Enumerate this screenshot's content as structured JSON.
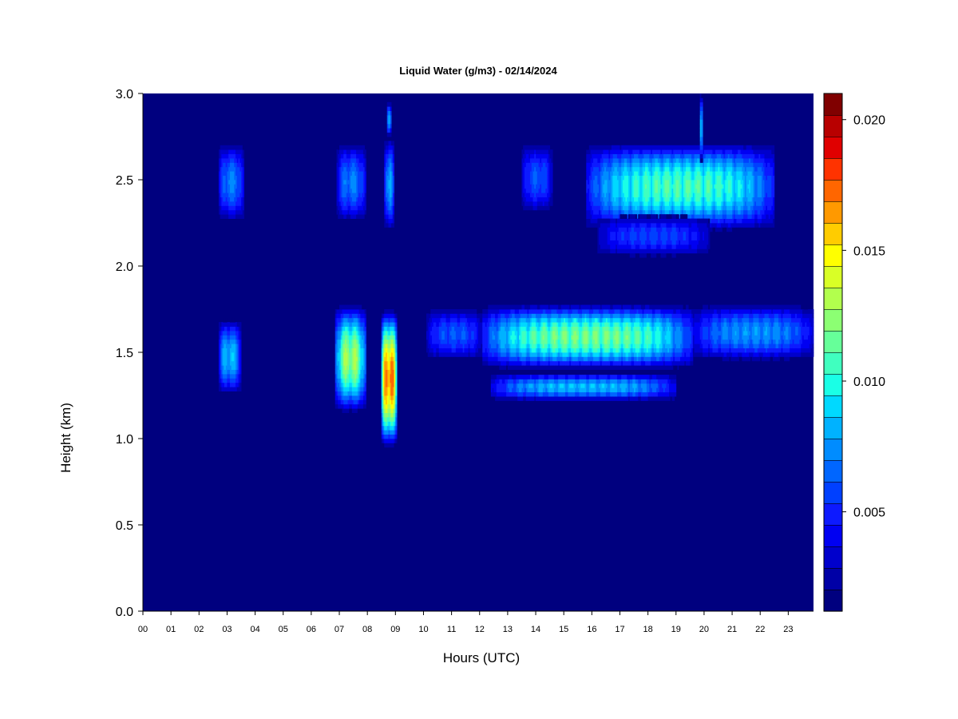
{
  "chart_data": {
    "type": "heatmap",
    "title": "Liquid Water (g/m3) - 02/14/2024",
    "xlabel": "Hours (UTC)",
    "ylabel": "Height (km)",
    "xlim": [
      0,
      23.9
    ],
    "ylim": [
      0.0,
      3.0
    ],
    "x_ticks": [
      "00",
      "01",
      "02",
      "03",
      "04",
      "05",
      "06",
      "07",
      "08",
      "09",
      "10",
      "11",
      "12",
      "13",
      "14",
      "15",
      "16",
      "17",
      "18",
      "19",
      "20",
      "21",
      "22",
      "23"
    ],
    "y_ticks": [
      "0.0",
      "0.5",
      "1.0",
      "1.5",
      "2.0",
      "2.5",
      "3.0"
    ],
    "background_value": 0.0,
    "colorbar": {
      "range": [
        0.0012,
        0.021
      ],
      "ticks": [
        "0.005",
        "0.010",
        "0.015",
        "0.020"
      ],
      "colors": [
        "#00007f",
        "#0000a6",
        "#0000cc",
        "#0000f2",
        "#0d1aff",
        "#0040ff",
        "#0066ff",
        "#008cff",
        "#00b2ff",
        "#00d9ff",
        "#1affe6",
        "#40ffbf",
        "#66ff99",
        "#8cff73",
        "#b2ff4d",
        "#d9ff26",
        "#ffff00",
        "#ffcc00",
        "#ff9900",
        "#ff6600",
        "#ff3300",
        "#e00000",
        "#b80000",
        "#800000"
      ]
    },
    "cloud_features": [
      {
        "hours": [
          2.7,
          3.6
        ],
        "height_km": [
          2.25,
          2.72
        ],
        "peak": 0.0075
      },
      {
        "hours": [
          6.9,
          7.95
        ],
        "height_km": [
          2.25,
          2.72
        ],
        "peak": 0.0075
      },
      {
        "hours": [
          8.6,
          8.95
        ],
        "height_km": [
          2.2,
          2.75
        ],
        "peak": 0.0085
      },
      {
        "hours": [
          13.5,
          14.6
        ],
        "height_km": [
          2.3,
          2.72
        ],
        "peak": 0.0065
      },
      {
        "hours": [
          15.8,
          22.5
        ],
        "height_km": [
          2.2,
          2.72
        ],
        "peak": 0.0115
      },
      {
        "hours": [
          16.2,
          20.2
        ],
        "height_km": [
          2.05,
          2.3
        ],
        "peak": 0.006
      },
      {
        "hours": [
          2.7,
          3.5
        ],
        "height_km": [
          1.25,
          1.7
        ],
        "peak": 0.009
      },
      {
        "hours": [
          6.85,
          7.95
        ],
        "height_km": [
          1.15,
          1.78
        ],
        "peak": 0.0135
      },
      {
        "hours": [
          8.5,
          9.05
        ],
        "height_km": [
          0.95,
          1.75
        ],
        "peak": 0.019
      },
      {
        "hours": [
          10.1,
          12.1
        ],
        "height_km": [
          1.45,
          1.76
        ],
        "peak": 0.0065
      },
      {
        "hours": [
          12.1,
          19.6
        ],
        "height_km": [
          1.4,
          1.78
        ],
        "peak": 0.0125
      },
      {
        "hours": [
          12.4,
          19.0
        ],
        "height_km": [
          1.22,
          1.38
        ],
        "peak": 0.009
      },
      {
        "hours": [
          19.6,
          23.9
        ],
        "height_km": [
          1.45,
          1.78
        ],
        "peak": 0.008
      },
      {
        "hours": [
          8.7,
          8.85
        ],
        "height_km": [
          2.75,
          2.95
        ],
        "peak": 0.008
      },
      {
        "hours": [
          19.85,
          19.95
        ],
        "height_km": [
          2.6,
          3.0
        ],
        "peak": 0.0095
      }
    ]
  }
}
